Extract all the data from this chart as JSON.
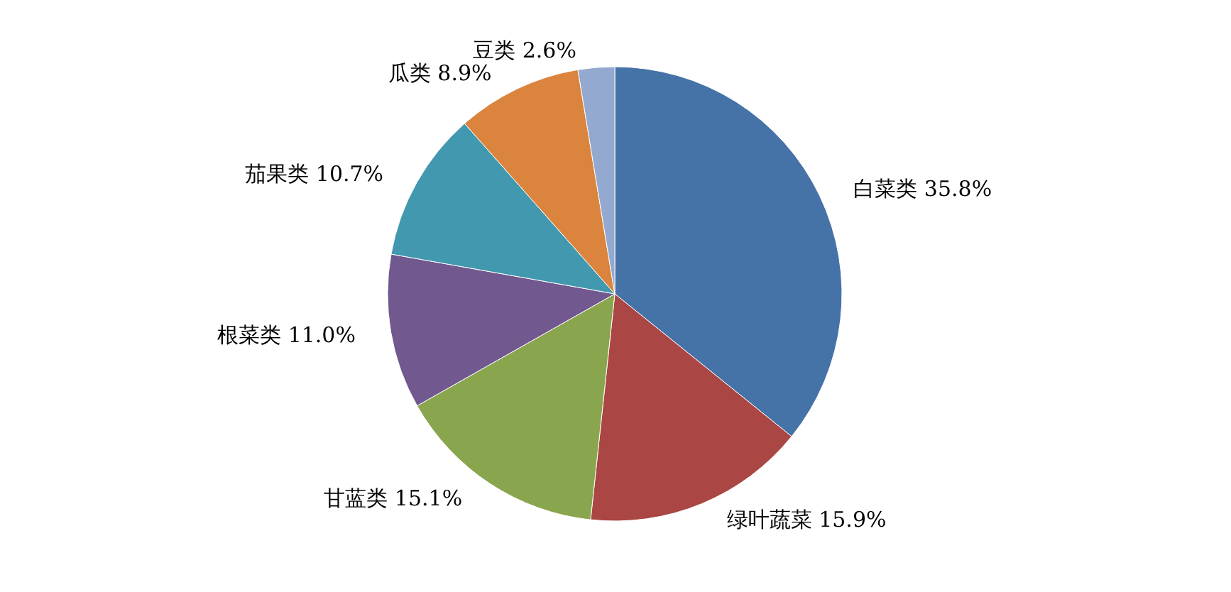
{
  "chart_data": {
    "type": "pie",
    "categories": [
      "白菜类",
      "绿叶蔬菜",
      "甘蓝类",
      "根菜类",
      "茄果类",
      "瓜类",
      "豆类"
    ],
    "values": [
      35.8,
      15.9,
      15.1,
      11.0,
      10.7,
      8.9,
      2.6
    ],
    "value_labels": [
      "35.8%",
      "15.9%",
      "15.1%",
      "11.0%",
      "10.7%",
      "8.9%",
      "2.6%"
    ],
    "colors": [
      "#4572a7",
      "#aa4643",
      "#89a54e",
      "#71588f",
      "#4198af",
      "#db843d",
      "#93a9cf"
    ]
  }
}
